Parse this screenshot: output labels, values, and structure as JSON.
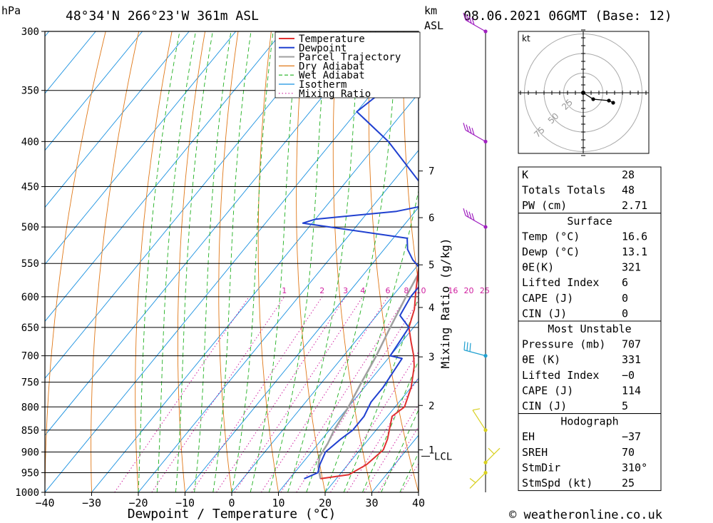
{
  "header": {
    "pressure_unit": "hPa",
    "location": "48°34'N  266°23'W  361m  ASL",
    "km_label": "km",
    "asl_label": "ASL",
    "datetime": "08.06.2021  06GMT  (Base: 12)"
  },
  "footer": {
    "credit": "© weatheronline.co.uk"
  },
  "chart_data": [
    {
      "type": "line",
      "subtype": "skew-T log-P sounding",
      "xlabel": "Dewpoint / Temperature (°C)",
      "ylabel": "hPa",
      "right_axis_label": "Mixing Ratio (g/kg)",
      "xlim": [
        -40,
        40
      ],
      "ylim": [
        1000,
        300
      ],
      "y_scale": "log",
      "x_ticks": [
        "−40",
        "−30",
        "−20",
        "−10",
        "0",
        "10",
        "20",
        "30",
        "40"
      ],
      "y_ticks": [
        "300",
        "350",
        "400",
        "450",
        "500",
        "550",
        "600",
        "650",
        "700",
        "750",
        "800",
        "850",
        "900",
        "950",
        "1000"
      ],
      "km_ticks": [
        {
          "km": "1",
          "p": 895
        },
        {
          "km": "2",
          "p": 797
        },
        {
          "km": "3",
          "p": 702
        },
        {
          "km": "4",
          "p": 617
        },
        {
          "km": "5",
          "p": 552
        },
        {
          "km": "6",
          "p": 488
        },
        {
          "km": "7",
          "p": 432
        }
      ],
      "lcl": {
        "label": "LCL",
        "p": 910
      },
      "mixing_ratio_labels": [
        "1",
        "2",
        "3",
        "4",
        "6",
        "8",
        "10",
        "16",
        "20",
        "25"
      ],
      "legend": [
        "Temperature",
        "Dewpoint",
        "Parcel Trajectory",
        "Dry Adiabat",
        "Wet Adiabat",
        "Isotherm",
        "Mixing Ratio"
      ],
      "colors": {
        "temperature": "#e03030",
        "dewpoint": "#2040d0",
        "parcel": "#a0a0a0",
        "dry_adiabat": "#e07818",
        "wet_adiabat": "#20b020",
        "isotherm": "#1890e0",
        "mixing_ratio": "#d020a0"
      },
      "series": [
        {
          "name": "Temperature",
          "points": [
            [
              16.6,
              965
            ],
            [
              22,
              955
            ],
            [
              24,
              930
            ],
            [
              25,
              895
            ],
            [
              24,
              870
            ],
            [
              21,
              820
            ],
            [
              22,
              800
            ],
            [
              20,
              760
            ],
            [
              17,
              720
            ],
            [
              15,
              700
            ],
            [
              12,
              675
            ],
            [
              9,
              650
            ],
            [
              7,
              620
            ],
            [
              4,
              590
            ],
            [
              1,
              560
            ],
            [
              -2,
              530
            ],
            [
              -3,
              520
            ],
            [
              1,
              505
            ],
            [
              3,
              490
            ],
            [
              0,
              470
            ],
            [
              -3,
              450
            ],
            [
              -6,
              430
            ],
            [
              -9,
              410
            ],
            [
              -11,
              390
            ],
            [
              -12,
              380
            ],
            [
              -13,
              370
            ],
            [
              -16,
              350
            ],
            [
              -18,
              335
            ],
            [
              -22,
              310
            ],
            [
              -24,
              300
            ]
          ]
        },
        {
          "name": "Dewpoint",
          "points": [
            [
              13.1,
              965
            ],
            [
              15,
              950
            ],
            [
              14,
              930
            ],
            [
              13,
              900
            ],
            [
              14,
              870
            ],
            [
              15,
              850
            ],
            [
              15,
              820
            ],
            [
              14,
              790
            ],
            [
              14,
              760
            ],
            [
              13,
              705
            ],
            [
              10,
              700
            ],
            [
              9,
              650
            ],
            [
              5,
              630
            ],
            [
              4,
              600
            ],
            [
              4,
              580
            ],
            [
              3,
              565
            ],
            [
              -2,
              545
            ],
            [
              -5,
              530
            ],
            [
              -7,
              515
            ],
            [
              -32,
              495
            ],
            [
              -30,
              490
            ],
            [
              -14,
              480
            ],
            [
              -7,
              470
            ],
            [
              -28,
              400
            ],
            [
              -40,
              370
            ],
            [
              -38,
              350
            ],
            [
              -36,
              330
            ],
            [
              -33,
              310
            ],
            [
              -32,
              300
            ]
          ]
        },
        {
          "name": "Parcel Trajectory",
          "points": [
            [
              16.6,
              965
            ],
            [
              14,
              935
            ],
            [
              12.5,
              910
            ],
            [
              12,
              880
            ],
            [
              11,
              850
            ],
            [
              10,
              800
            ],
            [
              8.5,
              750
            ],
            [
              7,
              700
            ],
            [
              5,
              650
            ],
            [
              3,
              600
            ],
            [
              1,
              550
            ],
            [
              -2,
              500
            ],
            [
              -6,
              450
            ],
            [
              -10,
              400
            ],
            [
              -16,
              350
            ],
            [
              -20,
              320
            ],
            [
              -22,
              305
            ]
          ]
        }
      ]
    },
    {
      "type": "scatter",
      "subtype": "hodograph",
      "unit_label": "kt",
      "ring_labels": [
        "25",
        "50",
        "75"
      ],
      "points": [
        [
          0,
          0
        ],
        [
          7,
          -9
        ],
        [
          18,
          -11
        ],
        [
          21,
          -14
        ]
      ]
    },
    {
      "type": "table",
      "subtype": "sounding indices",
      "sections": [
        {
          "title": "",
          "rows": [
            [
              "K",
              "28"
            ],
            [
              "Totals Totals",
              "48"
            ],
            [
              "PW (cm)",
              "2.71"
            ]
          ]
        },
        {
          "title": "Surface",
          "rows": [
            [
              "Temp (°C)",
              "16.6"
            ],
            [
              "Dewp (°C)",
              "13.1"
            ],
            [
              "θE(K)",
              "321"
            ],
            [
              "Lifted Index",
              "6"
            ],
            [
              "CAPE (J)",
              "0"
            ],
            [
              "CIN (J)",
              "0"
            ]
          ]
        },
        {
          "title": "Most Unstable",
          "rows": [
            [
              "Pressure (mb)",
              "707"
            ],
            [
              "θE (K)",
              "331"
            ],
            [
              "Lifted Index",
              "−0"
            ],
            [
              "CAPE (J)",
              "114"
            ],
            [
              "CIN (J)",
              "5"
            ]
          ]
        },
        {
          "title": "Hodograph",
          "rows": [
            [
              "EH",
              "−37"
            ],
            [
              "SREH",
              "70"
            ],
            [
              "StmDir",
              "310°"
            ],
            [
              "StmSpd (kt)",
              "25"
            ]
          ]
        }
      ]
    },
    {
      "type": "scatter",
      "subtype": "wind barbs",
      "barbs": [
        {
          "p": 300,
          "color": "#a020c0"
        },
        {
          "p": 400,
          "color": "#a020c0"
        },
        {
          "p": 500,
          "color": "#a020c0"
        },
        {
          "p": 700,
          "color": "#20a0d0"
        },
        {
          "p": 850,
          "color": "#d8d020"
        },
        {
          "p": 925,
          "color": "#d8d020"
        },
        {
          "p": 950,
          "color": "#d8d020"
        }
      ]
    }
  ]
}
